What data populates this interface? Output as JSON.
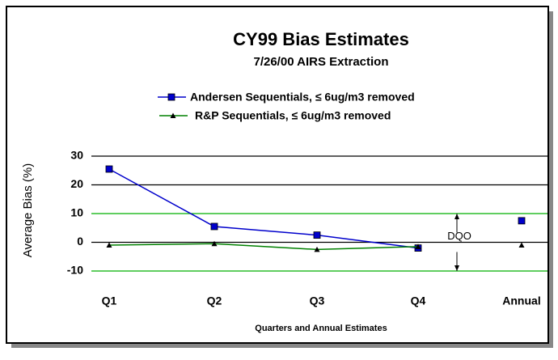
{
  "chart_data": {
    "type": "line",
    "title": "CY99 Bias Estimates",
    "subtitle": "7/26/00 AIRS Extraction",
    "y_label": "Average Bias (%)",
    "x_label": "Quarters and Annual Estimates",
    "categories": [
      "Q1",
      "Q2",
      "Q3",
      "Q4",
      "Annual"
    ],
    "series": [
      {
        "name": "Andersen Sequentials, ≤ 6ug/m3 removed",
        "color": "#0000cc",
        "marker": "square",
        "values": [
          25.5,
          5.5,
          2.5,
          -2,
          7.5
        ]
      },
      {
        "name": "R&P Sequentials, ≤ 6ug/m3 removed",
        "color": "#008000",
        "marker": "triangle",
        "values": [
          -1,
          -0.5,
          -2.5,
          -1.5,
          -1
        ]
      }
    ],
    "ylim": [
      -10,
      30
    ],
    "yticks": [
      30,
      20,
      10,
      0,
      -10
    ],
    "grid": true,
    "dqo_label": "DQO",
    "dqo_limits": [
      -10,
      10
    ],
    "dqo_color": "#00b000"
  }
}
